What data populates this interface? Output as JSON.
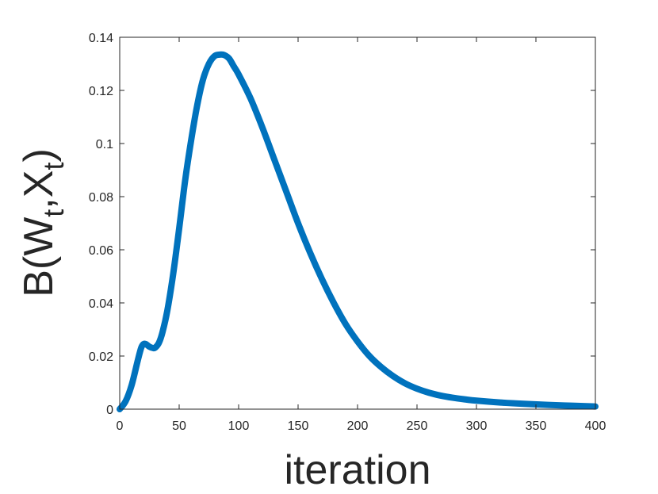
{
  "chart_data": {
    "type": "line",
    "xlabel": "iteration",
    "ylabel": {
      "base": "B(W",
      "sub1": "t",
      "mid": ",X",
      "sub2": "t",
      "end": ")"
    },
    "xlim": [
      0,
      400
    ],
    "ylim": [
      0,
      0.14
    ],
    "grid": false,
    "xticks": [
      0,
      50,
      100,
      150,
      200,
      250,
      300,
      350,
      400
    ],
    "yticks": [
      0,
      0.02,
      0.04,
      0.06,
      0.08,
      0.1,
      0.12,
      0.14
    ],
    "xtick_labels": [
      "0",
      "50",
      "100",
      "150",
      "200",
      "250",
      "300",
      "350",
      "400"
    ],
    "ytick_labels": [
      "0",
      "0.02",
      "0.04",
      "0.06",
      "0.08",
      "0.1",
      "0.12",
      "0.14"
    ],
    "series": [
      {
        "color": "#0072BD",
        "x": [
          0,
          5,
          10,
          15,
          18,
          20,
          22,
          25,
          28,
          30,
          33,
          36,
          40,
          45,
          50,
          55,
          60,
          65,
          70,
          75,
          80,
          85,
          88,
          92,
          96,
          100,
          110,
          120,
          130,
          140,
          150,
          160,
          170,
          180,
          190,
          200,
          210,
          220,
          230,
          240,
          250,
          260,
          270,
          280,
          290,
          300,
          320,
          340,
          360,
          380,
          400
        ],
        "y": [
          0,
          0.003,
          0.009,
          0.018,
          0.023,
          0.0245,
          0.0245,
          0.0235,
          0.023,
          0.0232,
          0.025,
          0.029,
          0.037,
          0.051,
          0.068,
          0.086,
          0.101,
          0.114,
          0.124,
          0.13,
          0.133,
          0.1335,
          0.1333,
          0.132,
          0.129,
          0.126,
          0.117,
          0.106,
          0.094,
          0.082,
          0.07,
          0.059,
          0.049,
          0.04,
          0.032,
          0.0255,
          0.02,
          0.0158,
          0.0124,
          0.0097,
          0.0077,
          0.0062,
          0.0051,
          0.0043,
          0.0037,
          0.0032,
          0.0025,
          0.002,
          0.0016,
          0.0013,
          0.001
        ]
      }
    ]
  }
}
